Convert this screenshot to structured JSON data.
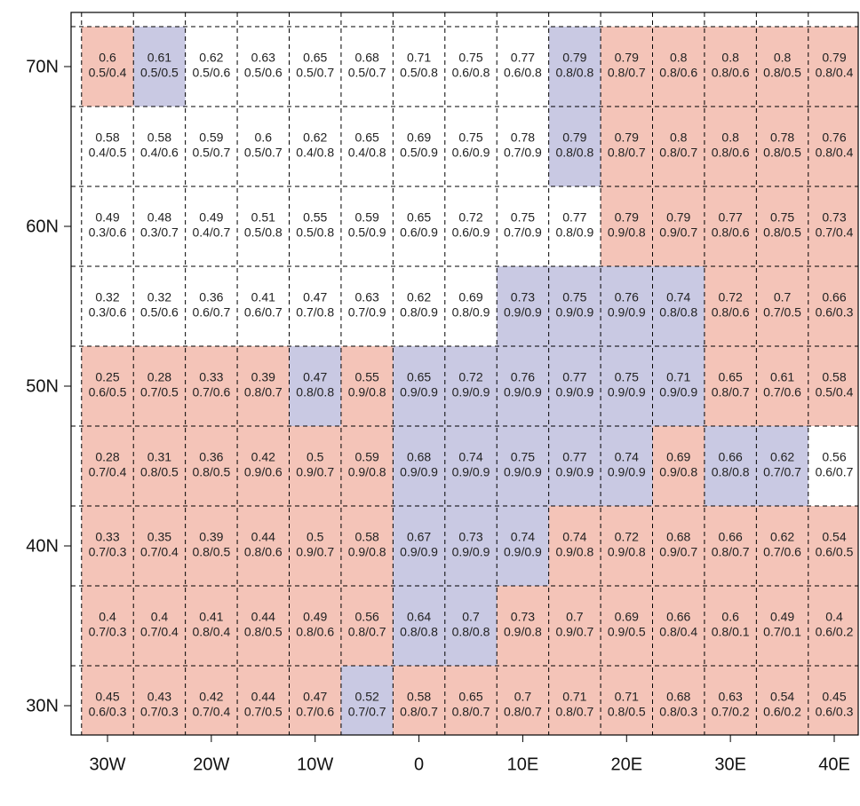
{
  "map": {
    "lon_labels": [
      "30W",
      "20W",
      "10W",
      "0",
      "10E",
      "20E",
      "30E",
      "40E"
    ],
    "lat_labels": [
      "70N",
      "60N",
      "50N",
      "40N",
      "30N"
    ],
    "rows": [
      {
        "cells": [
          {
            "value": 0.6,
            "sub": "0.5/0.4",
            "color": "#f4c4b8"
          },
          {
            "value": 0.61,
            "sub": "0.5/0.5",
            "color": "#c9c9e3"
          },
          {
            "value": 0.62,
            "sub": "0.5/0.6",
            "color": "#ffffff"
          },
          {
            "value": 0.63,
            "sub": "0.5/0.6",
            "color": "#ffffff"
          },
          {
            "value": 0.65,
            "sub": "0.5/0.7",
            "color": "#ffffff"
          },
          {
            "value": 0.68,
            "sub": "0.5/0.7",
            "color": "#ffffff"
          },
          {
            "value": 0.71,
            "sub": "0.5/0.8",
            "color": "#ffffff"
          },
          {
            "value": 0.75,
            "sub": "0.6/0.8",
            "color": "#ffffff"
          },
          {
            "value": 0.77,
            "sub": "0.6/0.8",
            "color": "#ffffff"
          },
          {
            "value": 0.79,
            "sub": "0.8/0.8",
            "color": "#c9c9e3"
          },
          {
            "value": 0.79,
            "sub": "0.8/0.7",
            "color": "#f4c4b8"
          },
          {
            "value": 0.8,
            "sub": "0.8/0.6",
            "color": "#f4c4b8"
          },
          {
            "value": 0.8,
            "sub": "0.8/0.6",
            "color": "#f4c4b8"
          },
          {
            "value": 0.8,
            "sub": "0.8/0.5",
            "color": "#f4c4b8"
          },
          {
            "value": 0.79,
            "sub": "0.8/0.4",
            "color": "#f4c4b8"
          }
        ]
      },
      {
        "cells": [
          {
            "value": 0.58,
            "sub": "0.4/0.5",
            "color": "#ffffff"
          },
          {
            "value": 0.58,
            "sub": "0.4/0.6",
            "color": "#ffffff"
          },
          {
            "value": 0.59,
            "sub": "0.5/0.7",
            "color": "#ffffff"
          },
          {
            "value": 0.6,
            "sub": "0.5/0.7",
            "color": "#ffffff"
          },
          {
            "value": 0.62,
            "sub": "0.4/0.8",
            "color": "#ffffff"
          },
          {
            "value": 0.65,
            "sub": "0.4/0.8",
            "color": "#ffffff"
          },
          {
            "value": 0.69,
            "sub": "0.5/0.9",
            "color": "#ffffff"
          },
          {
            "value": 0.75,
            "sub": "0.6/0.9",
            "color": "#ffffff"
          },
          {
            "value": 0.78,
            "sub": "0.7/0.9",
            "color": "#ffffff"
          },
          {
            "value": 0.79,
            "sub": "0.8/0.8",
            "color": "#c9c9e3"
          },
          {
            "value": 0.79,
            "sub": "0.8/0.7",
            "color": "#f4c4b8"
          },
          {
            "value": 0.8,
            "sub": "0.8/0.7",
            "color": "#f4c4b8"
          },
          {
            "value": 0.8,
            "sub": "0.8/0.6",
            "color": "#f4c4b8"
          },
          {
            "value": 0.78,
            "sub": "0.8/0.5",
            "color": "#f4c4b8"
          },
          {
            "value": 0.76,
            "sub": "0.8/0.4",
            "color": "#f4c4b8"
          }
        ]
      },
      {
        "cells": [
          {
            "value": 0.49,
            "sub": "0.3/0.6",
            "color": "#ffffff"
          },
          {
            "value": 0.48,
            "sub": "0.3/0.7",
            "color": "#ffffff"
          },
          {
            "value": 0.49,
            "sub": "0.4/0.7",
            "color": "#ffffff"
          },
          {
            "value": 0.51,
            "sub": "0.5/0.8",
            "color": "#ffffff"
          },
          {
            "value": 0.55,
            "sub": "0.5/0.8",
            "color": "#ffffff"
          },
          {
            "value": 0.59,
            "sub": "0.5/0.9",
            "color": "#ffffff"
          },
          {
            "value": 0.65,
            "sub": "0.6/0.9",
            "color": "#ffffff"
          },
          {
            "value": 0.72,
            "sub": "0.6/0.9",
            "color": "#ffffff"
          },
          {
            "value": 0.75,
            "sub": "0.7/0.9",
            "color": "#ffffff"
          },
          {
            "value": 0.77,
            "sub": "0.8/0.9",
            "color": "#ffffff"
          },
          {
            "value": 0.79,
            "sub": "0.9/0.8",
            "color": "#f4c4b8"
          },
          {
            "value": 0.79,
            "sub": "0.9/0.7",
            "color": "#f4c4b8"
          },
          {
            "value": 0.77,
            "sub": "0.8/0.6",
            "color": "#f4c4b8"
          },
          {
            "value": 0.75,
            "sub": "0.8/0.5",
            "color": "#f4c4b8"
          },
          {
            "value": 0.73,
            "sub": "0.7/0.4",
            "color": "#f4c4b8"
          }
        ]
      },
      {
        "cells": [
          {
            "value": 0.32,
            "sub": "0.3/0.6",
            "color": "#ffffff"
          },
          {
            "value": 0.32,
            "sub": "0.5/0.6",
            "color": "#ffffff"
          },
          {
            "value": 0.36,
            "sub": "0.6/0.7",
            "color": "#ffffff"
          },
          {
            "value": 0.41,
            "sub": "0.6/0.7",
            "color": "#ffffff"
          },
          {
            "value": 0.47,
            "sub": "0.7/0.8",
            "color": "#ffffff"
          },
          {
            "value": 0.63,
            "sub": "0.7/0.9",
            "color": "#ffffff"
          },
          {
            "value": 0.62,
            "sub": "0.8/0.9",
            "color": "#ffffff"
          },
          {
            "value": 0.69,
            "sub": "0.8/0.9",
            "color": "#ffffff"
          },
          {
            "value": 0.73,
            "sub": "0.9/0.9",
            "color": "#c9c9e3"
          },
          {
            "value": 0.75,
            "sub": "0.9/0.9",
            "color": "#c9c9e3"
          },
          {
            "value": 0.76,
            "sub": "0.9/0.9",
            "color": "#c9c9e3"
          },
          {
            "value": 0.74,
            "sub": "0.8/0.8",
            "color": "#c9c9e3"
          },
          {
            "value": 0.72,
            "sub": "0.8/0.6",
            "color": "#f4c4b8"
          },
          {
            "value": 0.7,
            "sub": "0.7/0.5",
            "color": "#f4c4b8"
          },
          {
            "value": 0.66,
            "sub": "0.6/0.3",
            "color": "#f4c4b8"
          }
        ]
      },
      {
        "cells": [
          {
            "value": 0.25,
            "sub": "0.6/0.5",
            "color": "#f4c4b8"
          },
          {
            "value": 0.28,
            "sub": "0.7/0.5",
            "color": "#f4c4b8"
          },
          {
            "value": 0.33,
            "sub": "0.7/0.6",
            "color": "#f4c4b8"
          },
          {
            "value": 0.39,
            "sub": "0.8/0.7",
            "color": "#f4c4b8"
          },
          {
            "value": 0.47,
            "sub": "0.8/0.8",
            "color": "#c9c9e3"
          },
          {
            "value": 0.55,
            "sub": "0.9/0.8",
            "color": "#f4c4b8"
          },
          {
            "value": 0.65,
            "sub": "0.9/0.9",
            "color": "#c9c9e3"
          },
          {
            "value": 0.72,
            "sub": "0.9/0.9",
            "color": "#c9c9e3"
          },
          {
            "value": 0.76,
            "sub": "0.9/0.9",
            "color": "#c9c9e3"
          },
          {
            "value": 0.77,
            "sub": "0.9/0.9",
            "color": "#c9c9e3"
          },
          {
            "value": 0.75,
            "sub": "0.9/0.9",
            "color": "#c9c9e3"
          },
          {
            "value": 0.71,
            "sub": "0.9/0.9",
            "color": "#c9c9e3"
          },
          {
            "value": 0.65,
            "sub": "0.8/0.7",
            "color": "#f4c4b8"
          },
          {
            "value": 0.61,
            "sub": "0.7/0.6",
            "color": "#f4c4b8"
          },
          {
            "value": 0.58,
            "sub": "0.5/0.4",
            "color": "#f4c4b8"
          }
        ]
      },
      {
        "cells": [
          {
            "value": 0.28,
            "sub": "0.7/0.4",
            "color": "#f4c4b8"
          },
          {
            "value": 0.31,
            "sub": "0.8/0.5",
            "color": "#f4c4b8"
          },
          {
            "value": 0.36,
            "sub": "0.8/0.5",
            "color": "#f4c4b8"
          },
          {
            "value": 0.42,
            "sub": "0.9/0.6",
            "color": "#f4c4b8"
          },
          {
            "value": 0.5,
            "sub": "0.9/0.7",
            "color": "#f4c4b8"
          },
          {
            "value": 0.59,
            "sub": "0.9/0.8",
            "color": "#f4c4b8"
          },
          {
            "value": 0.68,
            "sub": "0.9/0.9",
            "color": "#c9c9e3"
          },
          {
            "value": 0.74,
            "sub": "0.9/0.9",
            "color": "#c9c9e3"
          },
          {
            "value": 0.75,
            "sub": "0.9/0.9",
            "color": "#c9c9e3"
          },
          {
            "value": 0.77,
            "sub": "0.9/0.9",
            "color": "#c9c9e3"
          },
          {
            "value": 0.74,
            "sub": "0.9/0.9",
            "color": "#c9c9e3"
          },
          {
            "value": 0.69,
            "sub": "0.9/0.8",
            "color": "#f4c4b8"
          },
          {
            "value": 0.66,
            "sub": "0.8/0.8",
            "color": "#c9c9e3"
          },
          {
            "value": 0.62,
            "sub": "0.7/0.7",
            "color": "#c9c9e3"
          },
          {
            "value": 0.56,
            "sub": "0.6/0.7",
            "color": "#ffffff"
          }
        ]
      },
      {
        "cells": [
          {
            "value": 0.33,
            "sub": "0.7/0.3",
            "color": "#f4c4b8"
          },
          {
            "value": 0.35,
            "sub": "0.7/0.4",
            "color": "#f4c4b8"
          },
          {
            "value": 0.39,
            "sub": "0.8/0.5",
            "color": "#f4c4b8"
          },
          {
            "value": 0.44,
            "sub": "0.8/0.6",
            "color": "#f4c4b8"
          },
          {
            "value": 0.5,
            "sub": "0.9/0.7",
            "color": "#f4c4b8"
          },
          {
            "value": 0.58,
            "sub": "0.9/0.8",
            "color": "#f4c4b8"
          },
          {
            "value": 0.67,
            "sub": "0.9/0.9",
            "color": "#c9c9e3"
          },
          {
            "value": 0.73,
            "sub": "0.9/0.9",
            "color": "#c9c9e3"
          },
          {
            "value": 0.74,
            "sub": "0.9/0.9",
            "color": "#c9c9e3"
          },
          {
            "value": 0.74,
            "sub": "0.9/0.8",
            "color": "#f4c4b8"
          },
          {
            "value": 0.72,
            "sub": "0.9/0.8",
            "color": "#f4c4b8"
          },
          {
            "value": 0.68,
            "sub": "0.9/0.7",
            "color": "#f4c4b8"
          },
          {
            "value": 0.66,
            "sub": "0.8/0.7",
            "color": "#f4c4b8"
          },
          {
            "value": 0.62,
            "sub": "0.7/0.6",
            "color": "#f4c4b8"
          },
          {
            "value": 0.54,
            "sub": "0.6/0.5",
            "color": "#f4c4b8"
          }
        ]
      },
      {
        "cells": [
          {
            "value": 0.4,
            "sub": "0.7/0.3",
            "color": "#f4c4b8"
          },
          {
            "value": 0.4,
            "sub": "0.7/0.4",
            "color": "#f4c4b8"
          },
          {
            "value": 0.41,
            "sub": "0.8/0.4",
            "color": "#f4c4b8"
          },
          {
            "value": 0.44,
            "sub": "0.8/0.5",
            "color": "#f4c4b8"
          },
          {
            "value": 0.49,
            "sub": "0.8/0.6",
            "color": "#f4c4b8"
          },
          {
            "value": 0.56,
            "sub": "0.8/0.7",
            "color": "#f4c4b8"
          },
          {
            "value": 0.64,
            "sub": "0.8/0.8",
            "color": "#c9c9e3"
          },
          {
            "value": 0.7,
            "sub": "0.8/0.8",
            "color": "#c9c9e3"
          },
          {
            "value": 0.73,
            "sub": "0.9/0.8",
            "color": "#f4c4b8"
          },
          {
            "value": 0.7,
            "sub": "0.9/0.7",
            "color": "#f4c4b8"
          },
          {
            "value": 0.69,
            "sub": "0.9/0.5",
            "color": "#f4c4b8"
          },
          {
            "value": 0.66,
            "sub": "0.8/0.4",
            "color": "#f4c4b8"
          },
          {
            "value": 0.6,
            "sub": "0.8/0.1",
            "color": "#f4c4b8"
          },
          {
            "value": 0.49,
            "sub": "0.7/0.1",
            "color": "#f4c4b8"
          },
          {
            "value": 0.4,
            "sub": "0.6/0.2",
            "color": "#f4c4b8"
          }
        ]
      },
      {
        "cells": [
          {
            "value": 0.45,
            "sub": "0.6/0.3",
            "color": "#f4c4b8"
          },
          {
            "value": 0.43,
            "sub": "0.7/0.3",
            "color": "#f4c4b8"
          },
          {
            "value": 0.42,
            "sub": "0.7/0.4",
            "color": "#f4c4b8"
          },
          {
            "value": 0.44,
            "sub": "0.7/0.5",
            "color": "#f4c4b8"
          },
          {
            "value": 0.47,
            "sub": "0.7/0.6",
            "color": "#f4c4b8"
          },
          {
            "value": 0.52,
            "sub": "0.7/0.7",
            "color": "#c9c9e3"
          },
          {
            "value": 0.58,
            "sub": "0.8/0.7",
            "color": "#f4c4b8"
          },
          {
            "value": 0.65,
            "sub": "0.8/0.7",
            "color": "#f4c4b8"
          },
          {
            "value": 0.7,
            "sub": "0.8/0.7",
            "color": "#f4c4b8"
          },
          {
            "value": 0.71,
            "sub": "0.8/0.7",
            "color": "#f4c4b8"
          },
          {
            "value": 0.71,
            "sub": "0.8/0.5",
            "color": "#f4c4b8"
          },
          {
            "value": 0.68,
            "sub": "0.8/0.3",
            "color": "#f4c4b8"
          },
          {
            "value": 0.63,
            "sub": "0.7/0.2",
            "color": "#f4c4b8"
          },
          {
            "value": 0.54,
            "sub": "0.6/0.2",
            "color": "#f4c4b8"
          },
          {
            "value": 0.45,
            "sub": "0.6/0.3",
            "color": "#f4c4b8"
          }
        ]
      }
    ]
  }
}
